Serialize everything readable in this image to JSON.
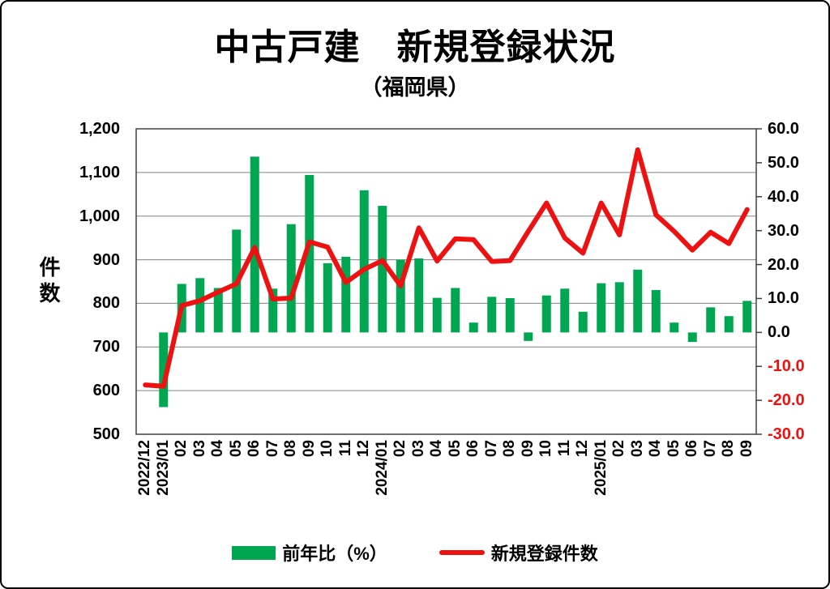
{
  "title": "中古戸建　新規登録状況",
  "subtitle": "（福岡県）",
  "legend": {
    "bar_label": "前年比（%）",
    "line_label": "新規登録件数"
  },
  "colors": {
    "bar": "#00A651",
    "line": "#EE1111",
    "grid": "#808080",
    "axis": "#404040",
    "negative_tick_label": "#EE1111",
    "text": "#000000",
    "background": "#FFFFFF"
  },
  "chart_data": {
    "type": "bar+line combo, dual axis",
    "title": "中古戸建　新規登録状況",
    "subtitle": "（福岡県）",
    "grid": "horizontal gridlines on, left-axis major units",
    "legend_position": "bottom",
    "categories": [
      "2022/12",
      "2023/01",
      "02",
      "03",
      "04",
      "05",
      "06",
      "07",
      "08",
      "09",
      "10",
      "11",
      "12",
      "2024/01",
      "02",
      "03",
      "04",
      "05",
      "06",
      "07",
      "08",
      "09",
      "10",
      "11",
      "12",
      "2025/01",
      "02",
      "03",
      "04",
      "05",
      "06",
      "07",
      "08",
      "09"
    ],
    "series": [
      {
        "name": "前年比（%）",
        "type": "bar",
        "axis": "right",
        "values": [
          null,
          -22.0,
          14.3,
          16.0,
          13.1,
          30.3,
          51.8,
          12.9,
          31.9,
          46.4,
          20.4,
          22.3,
          41.9,
          37.3,
          21.4,
          21.8,
          10.2,
          13.1,
          2.9,
          10.5,
          10.1,
          -2.5,
          10.9,
          12.9,
          6.1,
          14.5,
          14.8,
          18.5,
          12.5,
          2.9,
          -2.8,
          7.4,
          4.8,
          9.3
        ]
      },
      {
        "name": "新規登録件数",
        "type": "line",
        "axis": "left",
        "values": [
          613,
          610,
          795,
          806,
          826,
          845,
          928,
          810,
          812,
          941,
          929,
          848,
          878,
          898,
          840,
          973,
          897,
          948,
          946,
          896,
          898,
          965,
          1030,
          950,
          915,
          1030,
          957,
          1152,
          1003,
          965,
          922,
          963,
          937,
          1015
        ]
      }
    ],
    "left_axis": {
      "label": "件数",
      "min": 500,
      "max": 1200,
      "tick_step": 100,
      "tick_labels": [
        "1,200",
        "1,100",
        "1,000",
        "900",
        "800",
        "700",
        "600",
        "500"
      ]
    },
    "right_axis": {
      "label": "",
      "min": -30,
      "max": 60,
      "tick_step": 10,
      "tick_labels": [
        "60.0",
        "50.0",
        "40.0",
        "30.0",
        "20.0",
        "10.0",
        "0.0",
        "-10.0",
        "-20.0",
        "-30.0"
      ]
    }
  }
}
